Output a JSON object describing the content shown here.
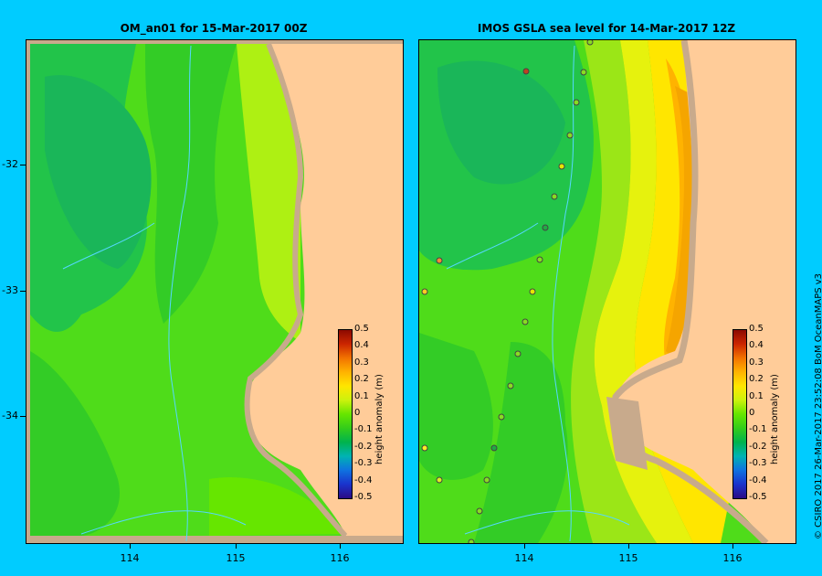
{
  "left_panel": {
    "title": "OM_an01  for 15-Mar-2017 00Z"
  },
  "right_panel": {
    "title": "IMOS  GSLA sea level   for 14-Mar-2017 12Z"
  },
  "y_axis_labels": [
    "-32",
    "-33",
    "-34"
  ],
  "x_axis_labels": [
    "114",
    "115",
    "116"
  ],
  "colorbar": {
    "title": "height anomaly (m)",
    "labels": [
      "0.5",
      "0.4",
      "0.3",
      "0.2",
      "0.1",
      "0",
      "-0.1",
      "-0.2",
      "-0.3",
      "-0.4",
      "-0.5"
    ],
    "colors": [
      "#2b0a85",
      "#1a33cc",
      "#0f72e0",
      "#00b3b3",
      "#00b34d",
      "#33cc1a",
      "#66e600",
      "#ccf20d",
      "#ffe600",
      "#ffb300",
      "#f27300",
      "#cc2600",
      "#8c0a00"
    ]
  },
  "credit": "© CSIRO 2017   26-Mar-2017 23:52:08 BoM OceanMAPS v3",
  "colors": {
    "land": "#ffcc99",
    "coast": "#c8aa8c",
    "frame": "#00ccff"
  }
}
